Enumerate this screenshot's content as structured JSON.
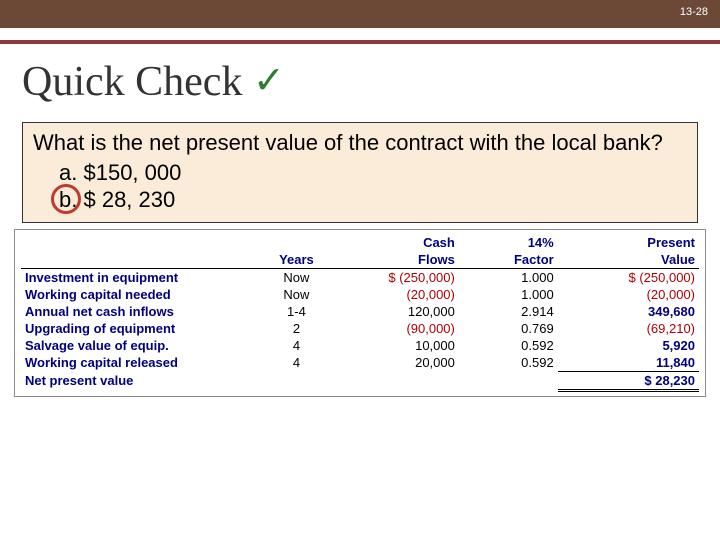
{
  "page_number": "13-28",
  "title": "Quick Check",
  "checkmark": "✓",
  "question": {
    "prompt": "What is the net present value of the contract with the local bank?",
    "options": [
      {
        "id": "a",
        "label": "a.",
        "value": "$150, 000",
        "circled": false
      },
      {
        "id": "b",
        "label": "b.",
        "value": "$  28, 230",
        "circled": true
      }
    ]
  },
  "npv_table": {
    "headers": {
      "col1": "",
      "years": "Years",
      "cash_flows_l1": "Cash",
      "cash_flows_l2": "Flows",
      "factor_l1": "14%",
      "factor_l2": "Factor",
      "pv_l1": "Present",
      "pv_l2": "Value"
    },
    "rows": [
      {
        "label": "Investment in equipment",
        "years": "Now",
        "cf_prefix": "$",
        "cf": "(250,000)",
        "cf_neg": true,
        "factor": "1.000",
        "pv_prefix": "$",
        "pv": "(250,000)",
        "pv_neg": true
      },
      {
        "label": "Working capital needed",
        "years": "Now",
        "cf_prefix": "",
        "cf": "(20,000)",
        "cf_neg": true,
        "factor": "1.000",
        "pv_prefix": "",
        "pv": "(20,000)",
        "pv_neg": true
      },
      {
        "label": "Annual net cash inflows",
        "years": "1-4",
        "cf_prefix": "",
        "cf": "120,000",
        "cf_neg": false,
        "factor": "2.914",
        "pv_prefix": "",
        "pv": "349,680",
        "pv_neg": false
      },
      {
        "label": "Upgrading of equipment",
        "years": "2",
        "cf_prefix": "",
        "cf": "(90,000)",
        "cf_neg": true,
        "factor": "0.769",
        "pv_prefix": "",
        "pv": "(69,210)",
        "pv_neg": true
      },
      {
        "label": "Salvage value of equip.",
        "years": "4",
        "cf_prefix": "",
        "cf": "10,000",
        "cf_neg": false,
        "factor": "0.592",
        "pv_prefix": "",
        "pv": "5,920",
        "pv_neg": false
      },
      {
        "label": "Working capital released",
        "years": "4",
        "cf_prefix": "",
        "cf": "20,000",
        "cf_neg": false,
        "factor": "0.592",
        "pv_prefix": "",
        "pv": "11,840",
        "pv_neg": false
      }
    ],
    "total": {
      "label": "Net present value",
      "pv_prefix": "$",
      "pv": "28,230"
    }
  },
  "colors": {
    "top_bar": "#6b4936",
    "accent": "#8a3b3b",
    "question_bg": "#faecd8",
    "circle": "#c0392b",
    "table_text": "#000080",
    "negative": "#b00000"
  }
}
